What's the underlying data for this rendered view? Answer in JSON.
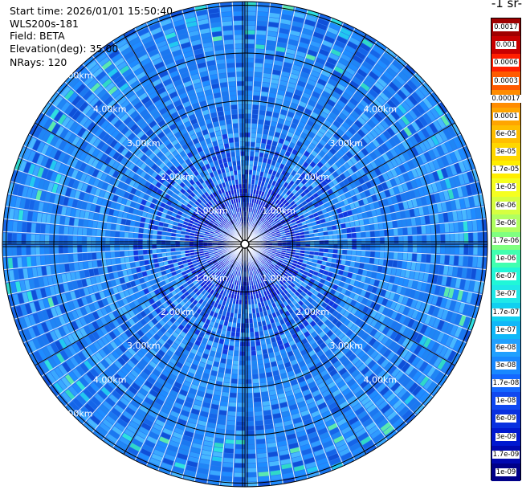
{
  "header": {
    "start_time": "Start time: 2026/01/01 15:50:40",
    "instrument": "WLS200s-181",
    "field": "Field: BETA",
    "elevation": "Elevation(deg): 35.00",
    "nrays": "NRays: 120"
  },
  "colorbar": {
    "title": "-1 sr-",
    "labels": [
      "0.0017",
      "0.001",
      "0.0006",
      "0.0003",
      "0.00017",
      "0.0001",
      "6e-05",
      "3e-05",
      "1.7e-05",
      "1e-05",
      "6e-06",
      "3e-06",
      "1.7e-06",
      "1e-06",
      "6e-07",
      "3e-07",
      "1.7e-07",
      "1e-07",
      "6e-08",
      "3e-08",
      "1.7e-08",
      "1e-08",
      "6e-09",
      "3e-09",
      "1.7e-09",
      "1e-09"
    ],
    "colors": [
      "#a00000",
      "#c80000",
      "#ff1e00",
      "#ff5a00",
      "#ff8c00",
      "#ffa500",
      "#ffbe00",
      "#ffd700",
      "#ffee00",
      "#f5ff20",
      "#d6ff40",
      "#b0ff60",
      "#80ff80",
      "#40ffb0",
      "#20f7d8",
      "#20e8e8",
      "#10d0f0",
      "#10b8f8",
      "#20a0ff",
      "#1888ff",
      "#1468ff",
      "#1048f0",
      "#0830e0",
      "#0018d0",
      "#0008b0",
      "#000088"
    ]
  },
  "chart_data": {
    "type": "heatmap",
    "projection": "polar PPI",
    "field": "BETA",
    "elevation_deg": 35.0,
    "nrays": 120,
    "range_rings_km": [
      1.0,
      2.0,
      3.0,
      4.0,
      5.0
    ],
    "ring_labels": [
      "1.00km",
      "2.00km",
      "3.00km",
      "4.00km",
      "5.00km"
    ],
    "color_scale": "log",
    "vmin": 1e-09,
    "vmax": 0.0017,
    "dominant_value_range": [
      1e-08,
      1e-07
    ],
    "grid": true
  }
}
